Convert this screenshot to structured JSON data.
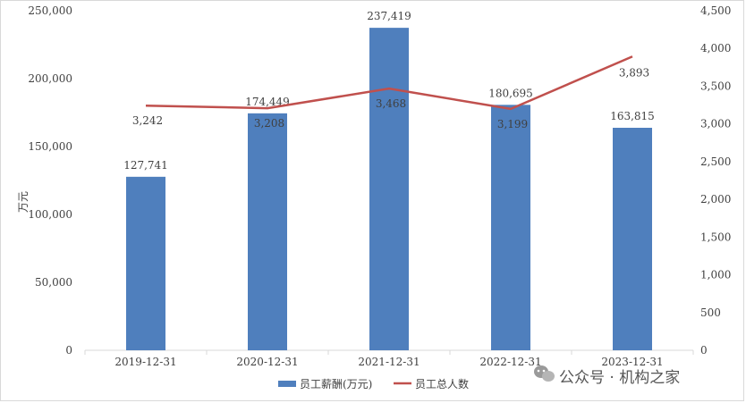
{
  "chart_data": {
    "type": "bar",
    "categories": [
      "2019-12-31",
      "2020-12-31",
      "2021-12-31",
      "2022-12-31",
      "2023-12-31"
    ],
    "series": [
      {
        "name": "员工薪酬(万元)",
        "kind": "bar",
        "axis": "left",
        "color": "#4f7fbd",
        "values": [
          127741,
          174449,
          237419,
          180695,
          163815
        ],
        "labels": [
          "127,741",
          "174,449",
          "237,419",
          "180,695",
          "163,815"
        ]
      },
      {
        "name": "员工总人数",
        "kind": "line",
        "axis": "right",
        "color": "#c0504d",
        "values": [
          3242,
          3208,
          3468,
          3199,
          3893
        ],
        "labels": [
          "3,242",
          "3,208",
          "3,468",
          "3,199",
          "3,893"
        ]
      }
    ],
    "ylabel": "万元",
    "ylim": [
      0,
      250000
    ],
    "y2lim": [
      0,
      4500
    ],
    "yticks": [
      "0",
      "50,000",
      "100,000",
      "150,000",
      "200,000",
      "250,000"
    ],
    "y2ticks": [
      "0",
      "500",
      "1,000",
      "1,500",
      "2,000",
      "2,500",
      "3,000",
      "3,500",
      "4,000",
      "4,500"
    ],
    "grid": false,
    "legend": "bottom-center"
  },
  "watermark": {
    "text": "公众号 · 机构之家",
    "icon": "wechat-icon"
  }
}
